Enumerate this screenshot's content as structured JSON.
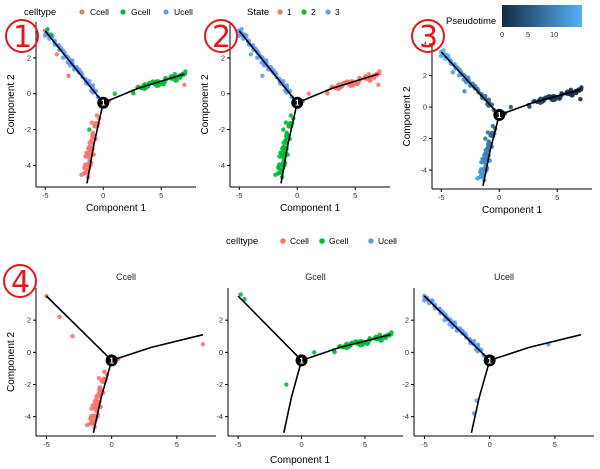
{
  "colors": {
    "Ccell": "#F8766D",
    "Gcell": "#00BA38",
    "Ucell": "#619CFF",
    "state1": "#F8766D",
    "state2": "#00BA38",
    "state3": "#619CFF",
    "pseudo_low": "#132B43",
    "pseudo_high": "#56B1F7",
    "badge": "#e8141a"
  },
  "panel_labels": [
    "1",
    "2",
    "3",
    "4"
  ],
  "chart_data": [
    {
      "type": "scatter",
      "panel": "1",
      "color_by": "celltype",
      "legend": {
        "title": "celltype",
        "entries": [
          "Ccell",
          "Gcell",
          "Ucell"
        ]
      },
      "xlabel": "Component 1",
      "ylabel": "Component 2",
      "xlim": [
        -5.8,
        8
      ],
      "ylim": [
        -5.2,
        4
      ],
      "xticks": [
        "-5",
        "0",
        "5"
      ],
      "yticks": [
        "-4",
        "-2",
        "0",
        "2"
      ],
      "branch_point": {
        "label": "1",
        "x": 0,
        "y": -0.5
      }
    },
    {
      "type": "scatter",
      "panel": "2",
      "color_by": "State",
      "legend": {
        "title": "State",
        "entries": [
          "1",
          "2",
          "3"
        ]
      },
      "xlabel": "Component 1",
      "ylabel": "Component 2",
      "xlim": [
        -5.8,
        8
      ],
      "ylim": [
        -5.2,
        4
      ],
      "xticks": [
        "-5",
        "0",
        "5"
      ],
      "yticks": [
        "-4",
        "-2",
        "0",
        "2"
      ],
      "branch_point": {
        "label": "1",
        "x": 0,
        "y": -0.5
      }
    },
    {
      "type": "scatter",
      "panel": "3",
      "color_by": "Pseudotime",
      "legend": {
        "title": "Pseudotime",
        "range": [
          0,
          14
        ],
        "ticks": [
          "0",
          "5",
          "10"
        ]
      },
      "xlabel": "Component 1",
      "ylabel": "Component 2",
      "xlim": [
        -5.8,
        8
      ],
      "ylim": [
        -5.2,
        4
      ],
      "xticks": [
        "-5",
        "0",
        "5"
      ],
      "yticks": [
        "-4",
        "-2",
        "0",
        "2",
        "4"
      ],
      "branch_point": {
        "label": "1",
        "x": 0,
        "y": -0.5
      }
    },
    {
      "type": "scatter",
      "panel": "4",
      "faceted_by": "celltype",
      "legend": {
        "title": "celltype",
        "entries": [
          "Ccell",
          "Gcell",
          "Ucell"
        ]
      },
      "facets": [
        "Ccell",
        "Gcell",
        "Ucell"
      ],
      "xlabel": "Component 1",
      "ylabel": "Component 2",
      "xlim": [
        -5.8,
        8
      ],
      "ylim": [
        -5.2,
        4
      ],
      "xticks": [
        "-5",
        "0",
        "5"
      ],
      "yticks": [
        "-4",
        "-2",
        "0",
        "2"
      ],
      "branch_point": {
        "label": "1",
        "x": 0,
        "y": -0.5
      },
      "trajectory": [
        [
          [
            -5,
            3.5
          ],
          [
            0,
            -0.5
          ]
        ],
        [
          [
            0,
            -0.5
          ],
          [
            3,
            0.3
          ],
          [
            7,
            1.1
          ]
        ],
        [
          [
            0,
            -0.5
          ],
          [
            -0.8,
            -2.8
          ],
          [
            -1.4,
            -5
          ]
        ]
      ],
      "branches": {
        "Ucell": {
          "from": [
            -5,
            3.5
          ],
          "to": [
            -0.5,
            -0.1
          ],
          "n": 70,
          "spread": 0.18,
          "extra": [
            [
              4.5,
              0.5
            ],
            [
              -1,
              -3
            ],
            [
              -1.2,
              -3.8
            ]
          ]
        },
        "Ccell": {
          "from": [
            -0.6,
            -1.5
          ],
          "to": [
            -1.6,
            -4.8
          ],
          "n": 70,
          "spread": 0.3,
          "extra": [
            [
              -5,
              3.5
            ],
            [
              -4,
              2.2
            ],
            [
              -3,
              1
            ],
            [
              7,
              0.5
            ],
            [
              0.5,
              -0.4
            ]
          ]
        },
        "Gcell": {
          "from": [
            2.5,
            0.2
          ],
          "to": [
            7.2,
            1.1
          ],
          "n": 60,
          "spread": 0.2,
          "extra": [
            [
              -4.8,
              3.6
            ],
            [
              -4.5,
              3.3
            ],
            [
              -1.2,
              -2
            ],
            [
              1,
              0
            ],
            [
              4,
              0.6
            ]
          ]
        }
      }
    }
  ]
}
